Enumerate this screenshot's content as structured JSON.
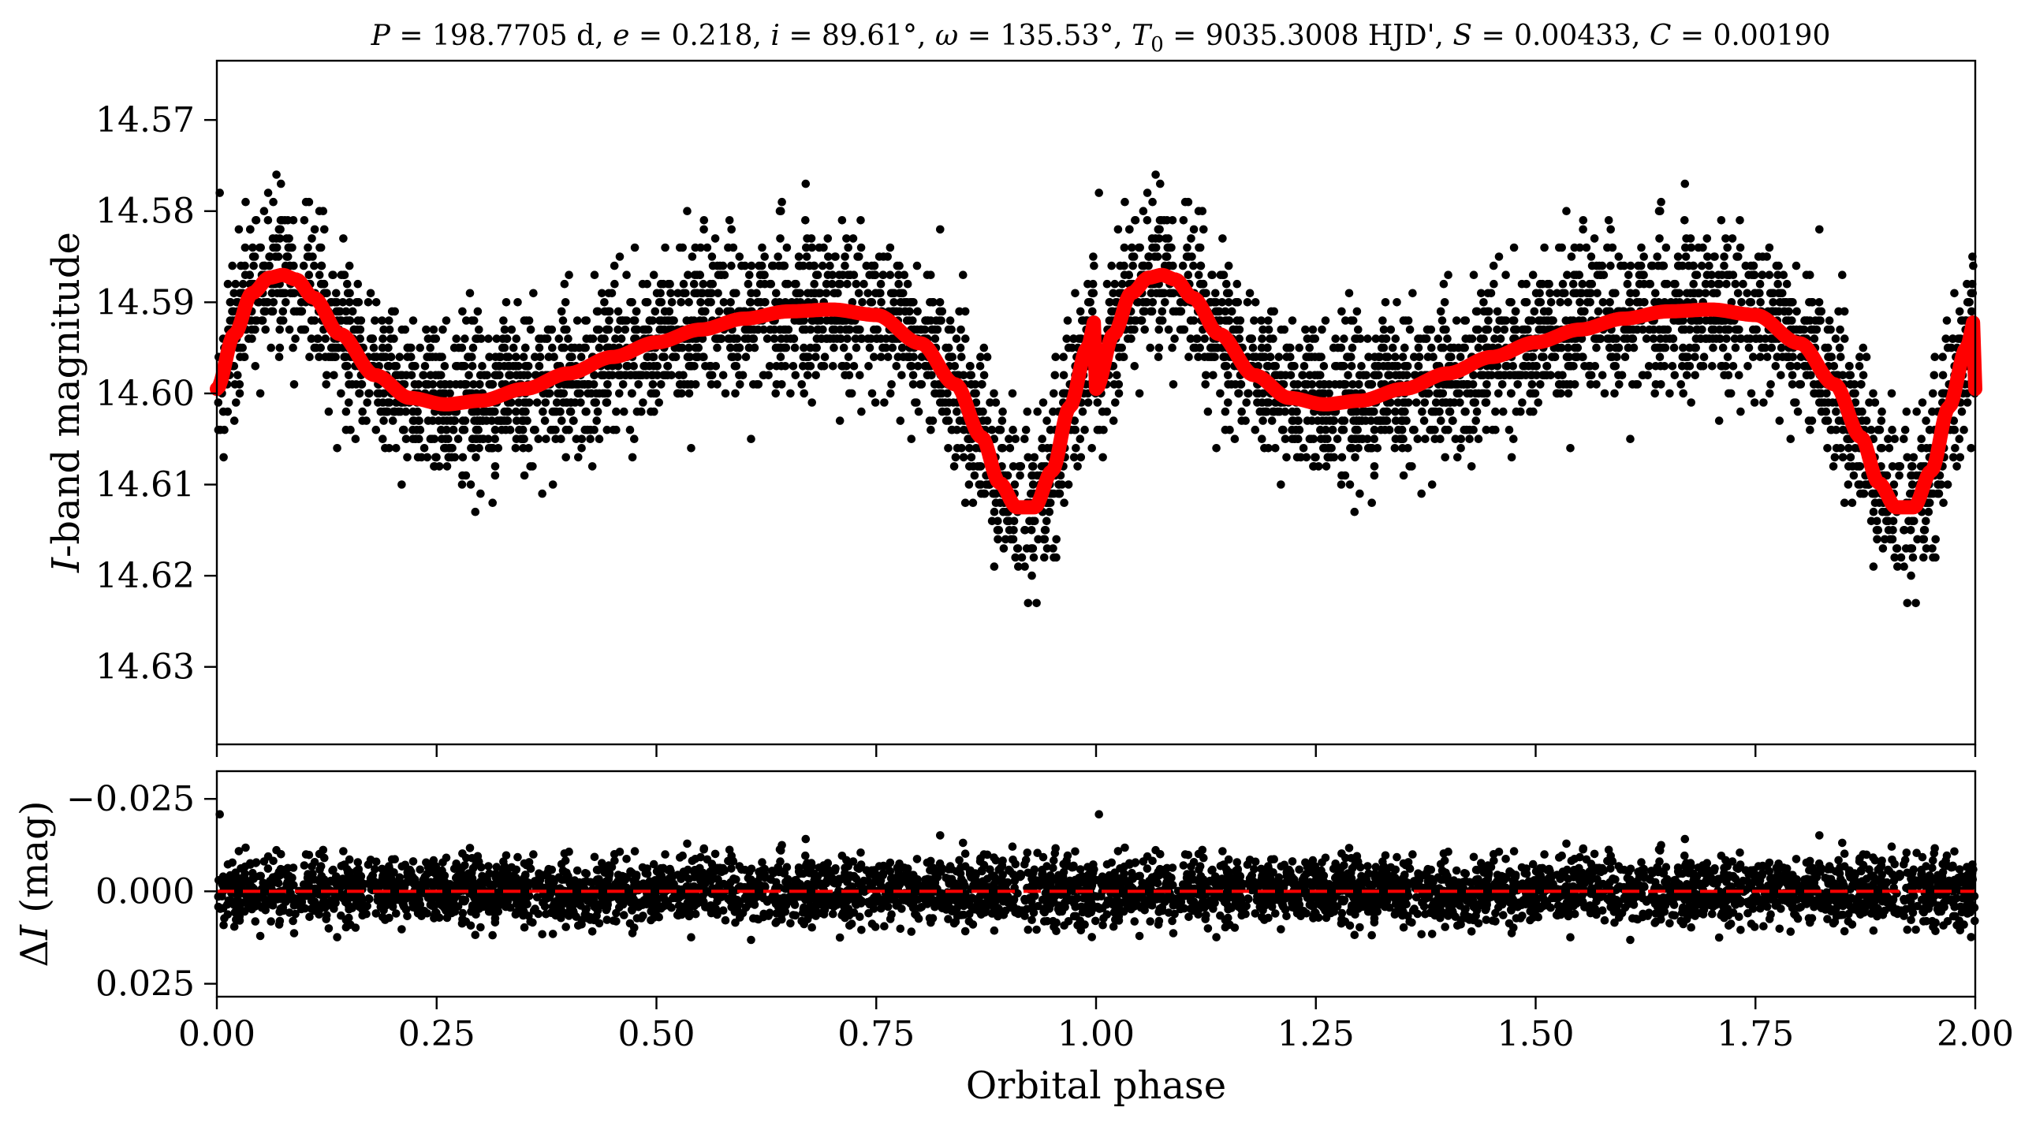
{
  "chart_data": [
    {
      "type": "scatter",
      "panel": "top",
      "title": "P = 198.7705 d, e = 0.218, i = 89.61°, ω = 135.53°, T0 = 9035.3008 HJD', S = 0.00433, C = 0.00190",
      "title_parts": {
        "P": "P",
        "P_val": " = 198.7705 d, ",
        "e": "e",
        "e_val": " = 0.218, ",
        "i": "i",
        "i_val": " = 89.61°, ",
        "w": "ω",
        "w_val": " = 135.53°, ",
        "T": "T",
        "T_sub": "0",
        "T_val": " = 9035.3008 HJD', ",
        "S": "S",
        "S_val": " = 0.00433, ",
        "C": "C",
        "C_val": " = 0.00190"
      },
      "ylabel_italic": "I",
      "ylabel_rest": "-band magnitude",
      "xlim": [
        0,
        2
      ],
      "ylim": [
        14.5635,
        14.6385
      ],
      "y_inverted": true,
      "yticks": [
        14.57,
        14.58,
        14.59,
        14.6,
        14.61,
        14.62,
        14.63
      ],
      "ytick_labels": [
        "14.57",
        "14.58",
        "14.59",
        "14.60",
        "14.61",
        "14.62",
        "14.63"
      ],
      "model_curve": {
        "color": "#ff0000",
        "x": [
          0.0,
          0.02,
          0.04,
          0.06,
          0.075,
          0.09,
          0.11,
          0.14,
          0.18,
          0.22,
          0.26,
          0.3,
          0.35,
          0.4,
          0.45,
          0.5,
          0.55,
          0.6,
          0.65,
          0.7,
          0.75,
          0.8,
          0.84,
          0.87,
          0.89,
          0.91,
          0.93,
          0.95,
          0.97,
          0.99,
          1.0
        ],
        "y": [
          14.5995,
          14.5935,
          14.589,
          14.5873,
          14.587,
          14.5875,
          14.5895,
          14.5935,
          14.598,
          14.6005,
          14.6012,
          14.6008,
          14.5995,
          14.5978,
          14.596,
          14.5944,
          14.593,
          14.5918,
          14.591,
          14.5908,
          14.5914,
          14.5945,
          14.599,
          14.6048,
          14.6098,
          14.6125,
          14.6125,
          14.6085,
          14.6015,
          14.595,
          14.5917
        ]
      },
      "point_color": "#000000",
      "dispersion_mag": 0.0042
    },
    {
      "type": "scatter",
      "panel": "bottom",
      "xlabel": "Orbital phase",
      "ylabel_delta": "Δ",
      "ylabel_italic": "I",
      "ylabel_rest": " (mag)",
      "xlim": [
        0,
        2
      ],
      "ylim": [
        -0.0325,
        0.0285
      ],
      "y_inverted": true,
      "xticks": [
        0.0,
        0.25,
        0.5,
        0.75,
        1.0,
        1.25,
        1.5,
        1.75,
        2.0
      ],
      "xtick_labels": [
        "0.00",
        "0.25",
        "0.50",
        "0.75",
        "1.00",
        "1.25",
        "1.50",
        "1.75",
        "2.00"
      ],
      "yticks": [
        -0.025,
        0.0,
        0.025
      ],
      "ytick_labels": [
        "−0.025",
        "0.000",
        "0.025"
      ],
      "reference_line": {
        "y": 0.0,
        "color": "#ff0000",
        "style": "dashed"
      },
      "dispersion_mag": 0.0042
    }
  ]
}
